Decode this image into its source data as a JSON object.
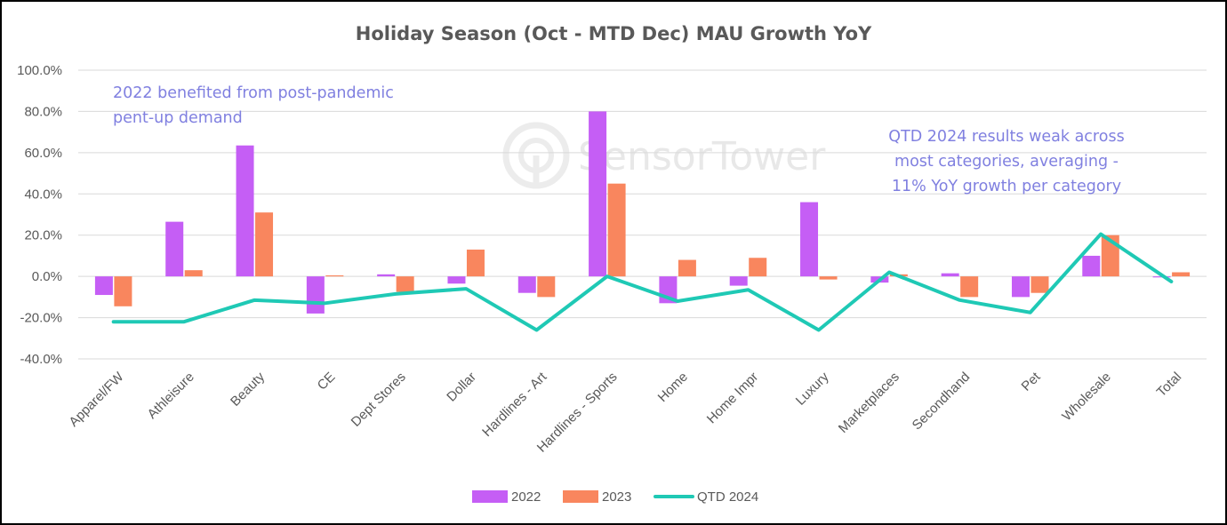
{
  "chart_data": {
    "type": "bar",
    "title": "Holiday Season (Oct - MTD Dec) MAU Growth YoY",
    "xlabel": "",
    "ylabel": "",
    "ylim": [
      -40,
      100
    ],
    "yticks": [
      "100.0%",
      "80.0%",
      "60.0%",
      "40.0%",
      "20.0%",
      "0.0%",
      "-20.0%",
      "-40.0%"
    ],
    "ytick_values": [
      100,
      80,
      60,
      40,
      20,
      0,
      -20,
      -40
    ],
    "categories": [
      "Apparel/FW",
      "Athleisure",
      "Beauty",
      "CE",
      "Dept Stores",
      "Dollar",
      "Hardlines - Art",
      "Hardlines - Sports",
      "Home",
      "Home Impr",
      "Luxury",
      "Marketplaces",
      "Secondhand",
      "Pet",
      "Wholesale",
      "Total"
    ],
    "series": [
      {
        "name": "2022",
        "type": "bar",
        "color": "#c55ef5",
        "values": [
          -9,
          26.5,
          63.5,
          -18,
          1,
          -3.5,
          -8,
          80,
          -13,
          -4.5,
          36,
          -3,
          1.5,
          -10,
          10,
          -0.5
        ]
      },
      {
        "name": "2023",
        "type": "bar",
        "color": "#f9865e",
        "values": [
          -14.5,
          3,
          31,
          0.5,
          -7.5,
          13,
          -10,
          45,
          8,
          9,
          -1.5,
          1,
          -10,
          -8,
          20,
          2
        ]
      },
      {
        "name": "QTD 2024",
        "type": "line",
        "color": "#1fc9b5",
        "values": [
          -22,
          -22,
          -11.5,
          -13,
          -8.5,
          -6,
          -26,
          0,
          -12,
          -6.5,
          -26,
          2,
          -11.5,
          -17.5,
          20.5,
          -2.5
        ]
      }
    ],
    "grid": true,
    "legend": "bottom",
    "annotations": [
      {
        "lines": [
          "2022 benefited from post-pandemic",
          "pent-up demand"
        ]
      },
      {
        "lines": [
          "QTD 2024 results weak across",
          "most categories, averaging -",
          "11% YoY growth per category"
        ]
      }
    ],
    "watermark": "SensorTower"
  }
}
